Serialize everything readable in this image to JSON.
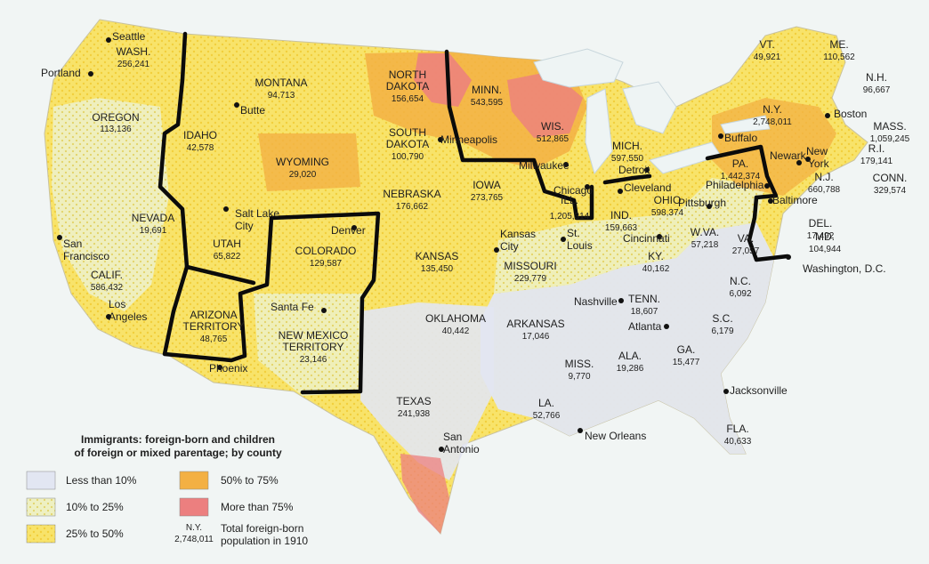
{
  "legend": {
    "title_line1": "Immigrants: foreign-born and children",
    "title_line2": "of foreign or mixed parentage; by county",
    "items": [
      "Less than 10%",
      "10% to 25%",
      "25% to 50%",
      "50% to 75%",
      "More than 75%"
    ],
    "example_state": "N.Y.",
    "example_value": "2,748,011",
    "example_desc1": "Total foreign-born",
    "example_desc2": "population in 1910",
    "colors": {
      "less_10": "#e2e6f2",
      "10_25": "#eef0c2",
      "25_50": "#f8e36a",
      "50_75": "#f3b043",
      "more_75": "#ec7f7f"
    }
  },
  "states": [
    {
      "name": "WASH.",
      "population": "256,241"
    },
    {
      "name": "OREGON",
      "population": "113,136"
    },
    {
      "name": "MONTANA",
      "population": "94,713"
    },
    {
      "name": "IDAHO",
      "population": "42,578"
    },
    {
      "name": "WYOMING",
      "population": "29,020"
    },
    {
      "name": "NEVADA",
      "population": "19,691"
    },
    {
      "name": "UTAH",
      "population": "65,822"
    },
    {
      "name": "COLORADO",
      "population": "129,587"
    },
    {
      "name": "CALIF.",
      "population": "586,432"
    },
    {
      "name": "ARIZONA",
      "name2": "TERRITORY",
      "population": "48,765"
    },
    {
      "name": "NEW MEXICO",
      "name2": "TERRITORY",
      "population": "23,146"
    },
    {
      "name": "NORTH",
      "name2": "DAKOTA",
      "population": "156,654"
    },
    {
      "name": "SOUTH",
      "name2": "DAKOTA",
      "population": "100,790"
    },
    {
      "name": "NEBRASKA",
      "population": "176,662"
    },
    {
      "name": "KANSAS",
      "population": "135,450"
    },
    {
      "name": "OKLAHOMA",
      "population": "40,442"
    },
    {
      "name": "TEXAS",
      "population": "241,938"
    },
    {
      "name": "MINN.",
      "population": "543,595"
    },
    {
      "name": "WIS.",
      "population": "512,865"
    },
    {
      "name": "IOWA",
      "population": "273,765"
    },
    {
      "name": "MISSOURI",
      "population": "229,779"
    },
    {
      "name": "ARKANSAS",
      "population": "17,046"
    },
    {
      "name": "LA.",
      "population": "52,766"
    },
    {
      "name": "MISS.",
      "population": "9,770"
    },
    {
      "name": "ILL.",
      "population": "1,205,314"
    },
    {
      "name": "IND.",
      "population": "159,663"
    },
    {
      "name": "MICH.",
      "population": "597,550"
    },
    {
      "name": "OHIO",
      "population": "598,374"
    },
    {
      "name": "KY.",
      "population": "40,162"
    },
    {
      "name": "TENN.",
      "population": "18,607"
    },
    {
      "name": "ALA.",
      "population": "19,286"
    },
    {
      "name": "GA.",
      "population": "15,477"
    },
    {
      "name": "FLA.",
      "population": "40,633"
    },
    {
      "name": "W.VA.",
      "population": "57,218"
    },
    {
      "name": "VA.",
      "population": "27,057"
    },
    {
      "name": "N.C.",
      "population": "6,092"
    },
    {
      "name": "S.C.",
      "population": "6,179"
    },
    {
      "name": "PA.",
      "population": "1,442,374"
    },
    {
      "name": "N.Y.",
      "population": "2,748,011"
    },
    {
      "name": "N.J.",
      "population": "660,788"
    },
    {
      "name": "DEL.",
      "population": "17,492"
    },
    {
      "name": "MD.",
      "population": "104,944"
    },
    {
      "name": "CONN.",
      "population": "329,574"
    },
    {
      "name": "R.I.",
      "population": "179,141"
    },
    {
      "name": "MASS.",
      "population": "1,059,245"
    },
    {
      "name": "N.H.",
      "population": "96,667"
    },
    {
      "name": "VT.",
      "population": "49,921"
    },
    {
      "name": "ME.",
      "population": "110,562"
    }
  ],
  "cities": [
    "Seattle",
    "Portland",
    "Butte",
    "Salt Lake",
    "City",
    "Denver",
    "San",
    "Francisco",
    "Los",
    "Angeles",
    "Santa Fe",
    "Phoenix",
    "Minneapolis",
    "Milwaukee",
    "Chicago",
    "Kansas",
    "City",
    "St.",
    "Louis",
    "Nashville",
    "Detroit",
    "Cleveland",
    "Cincinnati",
    "Pittsburgh",
    "Atlanta",
    "Jacksonville",
    "New Orleans",
    "San",
    "Antonio",
    "Buffalo",
    "Philadelphia",
    "Newark",
    "New",
    "York",
    "Boston",
    "Baltimore",
    "Washington, D.C."
  ]
}
